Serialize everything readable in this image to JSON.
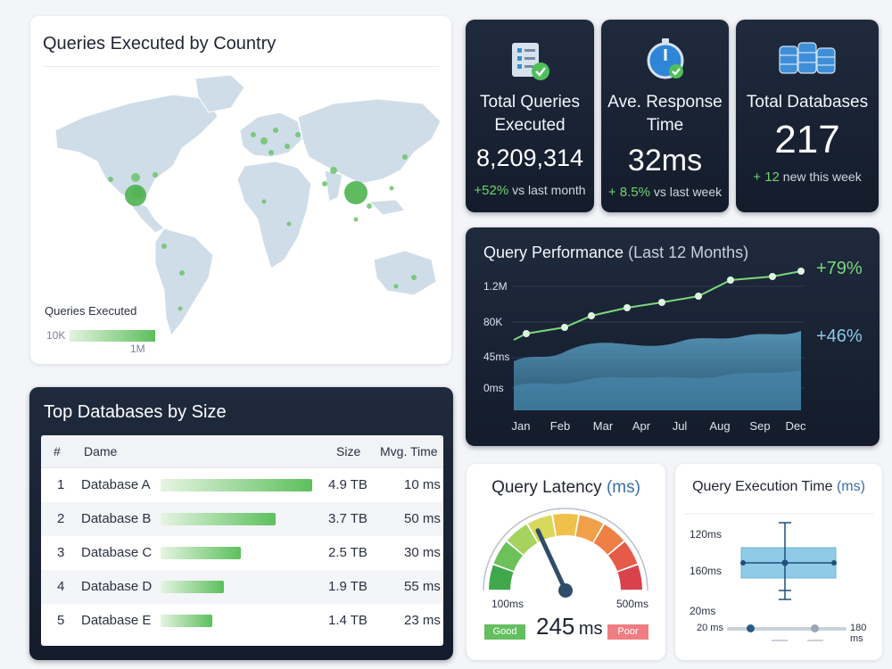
{
  "map_card": {
    "title": "Queries Executed by Country",
    "legend_title": "Queries Executed",
    "legend_min": "10K",
    "legend_max": "1M"
  },
  "kpis": [
    {
      "label_line1": "Total Queries",
      "label_line2": "Executed",
      "value": "8,209,314",
      "delta": "+52%",
      "delta_suffix": "vs last month",
      "icon": "checklist-icon"
    },
    {
      "label_line1": "Ave. Response",
      "label_line2": "Time",
      "value": "32ms",
      "delta": "+ 8.5%",
      "delta_suffix": "vs last week",
      "icon": "stopwatch-icon"
    },
    {
      "label_line1": "Total Databases",
      "label_line2": "",
      "value": "217",
      "delta": "+ 12",
      "delta_suffix": "new this week",
      "icon": "database-stack-icon"
    }
  ],
  "performance": {
    "title": "Query Performance",
    "subtitle": "(Last 12 Months)",
    "y_ticks": [
      "1.2M",
      "80K",
      "45ms",
      "0ms"
    ],
    "x_ticks": [
      "Jan",
      "Feb",
      "Mar",
      "Apr",
      "Jul",
      "Aug",
      "Sep",
      "Dec"
    ],
    "line_label": "+79%",
    "area_label": "+46%",
    "colors": {
      "line": "#7cd67c",
      "area_top": "#5ea4c8",
      "area_bottom": "#3b7ea2"
    }
  },
  "top_databases": {
    "title": "Top Databases by Size",
    "col_rank": "#",
    "col_name": "Dame",
    "col_size": "Size",
    "col_time": "Mvg. Time",
    "rows": [
      {
        "rank": "1",
        "name": "Database A",
        "size": "4.9 TB",
        "time": "10 ms",
        "share": 1.0
      },
      {
        "rank": "2",
        "name": "Database B",
        "size": "3.7 TB",
        "time": "50 ms",
        "share": 0.76
      },
      {
        "rank": "3",
        "name": "Database C",
        "size": "2.5 TB",
        "time": "30 ms",
        "share": 0.53
      },
      {
        "rank": "4",
        "name": "Database D",
        "size": "1.9 TB",
        "time": "55 ms",
        "share": 0.42
      },
      {
        "rank": "5",
        "name": "Database E",
        "size": "1.4 TB",
        "time": "23 ms",
        "share": 0.34
      }
    ]
  },
  "latency": {
    "title": "Query Latency",
    "unit_label": "(ms)",
    "min_label": "100ms",
    "max_label": "500ms",
    "value": "245",
    "value_unit": "ms",
    "good_label": "Good",
    "poor_label": "Poor",
    "needle_value": 245
  },
  "exec_time": {
    "title": "Query Execution Time",
    "unit_label": "(ms)",
    "y_ticks": [
      "120ms",
      "160ms",
      "20ms"
    ],
    "slider_min": "20 ms",
    "slider_max": "180 ms"
  }
}
